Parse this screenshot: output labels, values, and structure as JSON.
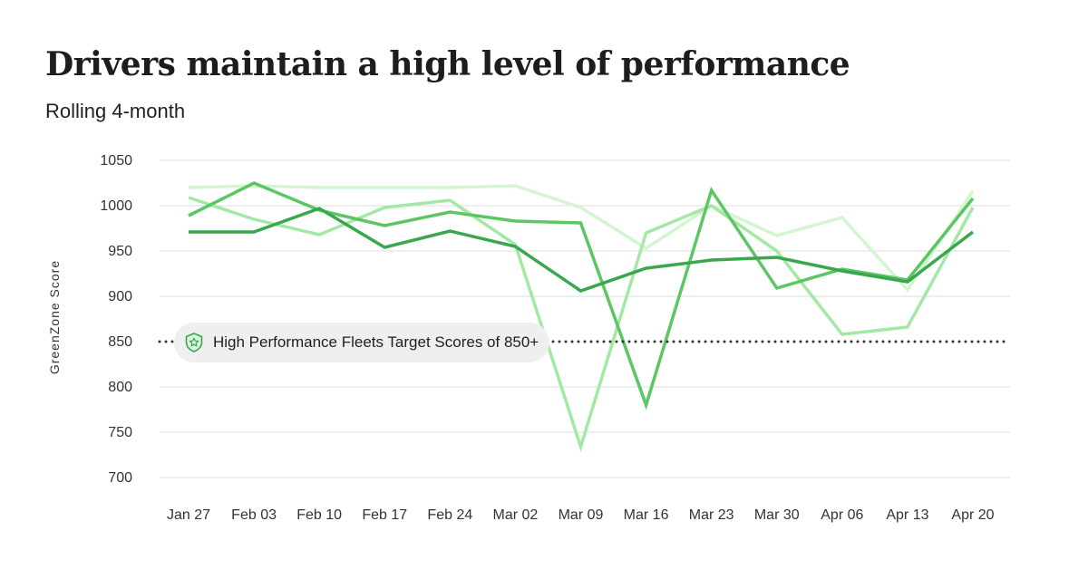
{
  "header": {
    "title": "Drivers maintain a high level of performance",
    "subtitle": "Rolling 4-month"
  },
  "annotation": {
    "text": "High Performance Fleets Target Scores of 850+",
    "icon": "shield-star-icon",
    "value": 850
  },
  "colors": {
    "series": [
      "#d3f5cf",
      "#a3e8a5",
      "#5cc762",
      "#3aa74e"
    ],
    "grid": "#dddddd",
    "reference": "#333333",
    "pill_bg": "#efefef"
  },
  "chart_data": {
    "type": "line",
    "title": "Drivers maintain a high level of performance",
    "subtitle": "Rolling 4-month",
    "xlabel": "",
    "ylabel": "GreenZone Score",
    "categories": [
      "Jan 27",
      "Feb 03",
      "Feb 10",
      "Feb 17",
      "Feb 24",
      "Mar 02",
      "Mar 09",
      "Mar 16",
      "Mar 23",
      "Mar 30",
      "Apr 06",
      "Apr 13",
      "Apr 20"
    ],
    "yticks": [
      700,
      750,
      800,
      850,
      900,
      950,
      1000,
      1050
    ],
    "ylim": [
      700,
      1050
    ],
    "grid": true,
    "series": [
      {
        "color": "#d3f5cf",
        "values": [
          1020,
          1022,
          1020,
          1020,
          1020,
          1022,
          998,
          953,
          1000,
          967,
          987,
          907,
          1016
        ]
      },
      {
        "color": "#a3e8a5",
        "values": [
          1009,
          985,
          968,
          998,
          1006,
          957,
          734,
          970,
          1000,
          950,
          858,
          866,
          998
        ]
      },
      {
        "color": "#5cc762",
        "values": [
          989,
          1025,
          995,
          978,
          993,
          983,
          981,
          780,
          1017,
          909,
          930,
          918,
          1008
        ]
      },
      {
        "color": "#3aa74e",
        "values": [
          971,
          971,
          997,
          954,
          972,
          955,
          906,
          931,
          940,
          943,
          928,
          916,
          971
        ]
      }
    ],
    "reference_line": {
      "value": 850,
      "style": "dotted",
      "label": "High Performance Fleets Target Scores of 850+"
    }
  }
}
